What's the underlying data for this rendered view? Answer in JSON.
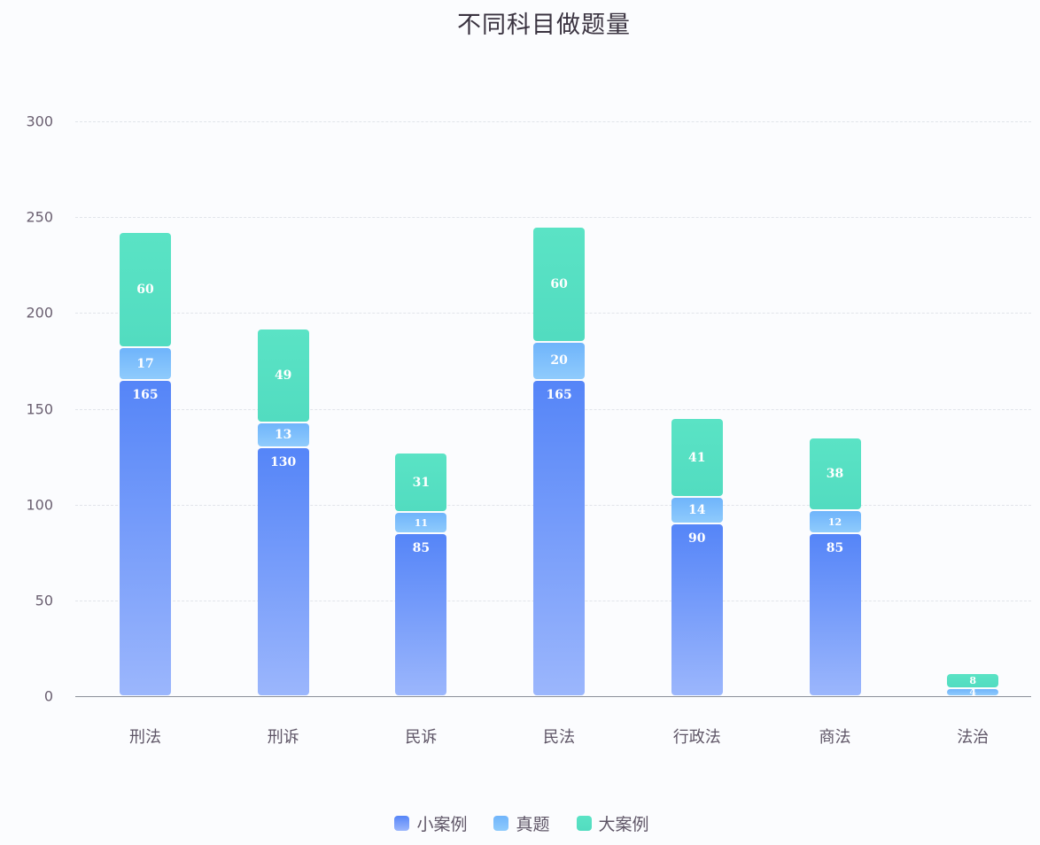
{
  "chart_data": {
    "type": "bar",
    "stacked": true,
    "title": "不同科目做题量",
    "xlabel": "",
    "ylabel": "",
    "ylim": [
      0,
      300
    ],
    "yticks": [
      0,
      50,
      100,
      150,
      200,
      250,
      300
    ],
    "grid": "horizontal dashed",
    "legend_position": "bottom",
    "categories": [
      "刑法",
      "刑诉",
      "民诉",
      "民法",
      "行政法",
      "商法",
      "法治"
    ],
    "series": [
      {
        "name": "小案例",
        "color": "#5585f8",
        "values": [
          165,
          130,
          85,
          165,
          90,
          85,
          0
        ]
      },
      {
        "name": "真题",
        "color": "#6fb4fb",
        "values": [
          17,
          13,
          11,
          20,
          14,
          12,
          4
        ]
      },
      {
        "name": "大案例",
        "color": "#5ae3c5",
        "values": [
          60,
          49,
          31,
          60,
          41,
          38,
          8
        ]
      }
    ]
  }
}
